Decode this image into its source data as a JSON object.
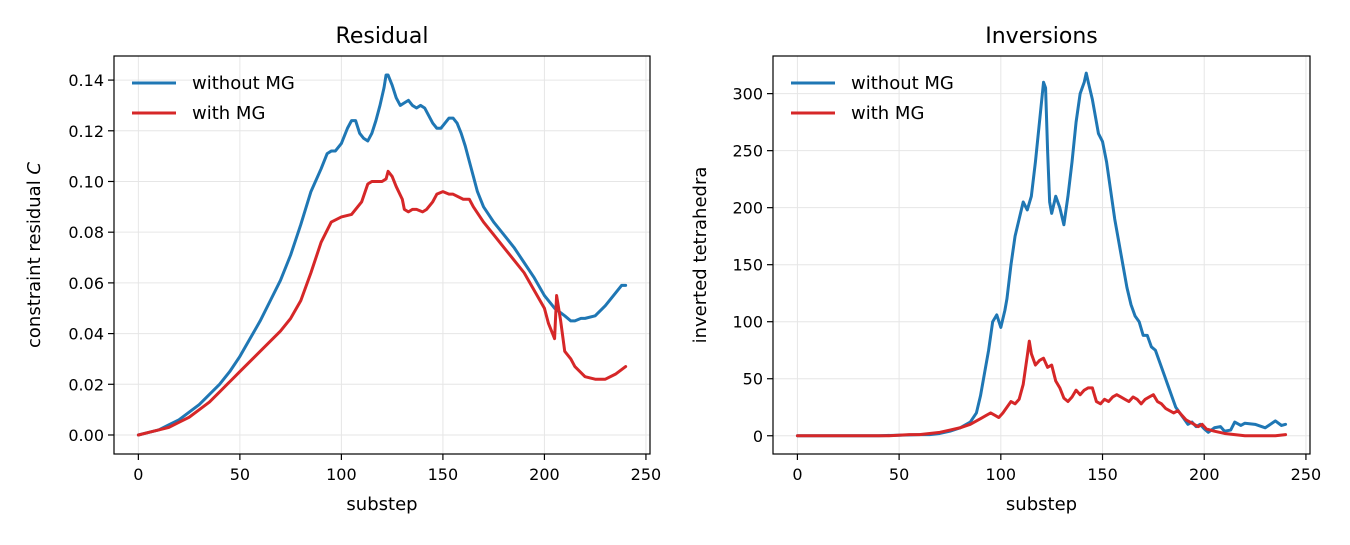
{
  "colors": {
    "without_mg": "#1f77b4",
    "with_mg": "#d62728",
    "grid": "#e6e6e6",
    "axis": "#000000"
  },
  "chart_data": [
    {
      "type": "line",
      "title": "Residual",
      "xlabel": "substep",
      "ylabel": "constraint residual",
      "ylabel_symbol": "C",
      "xlim": [
        -12,
        252
      ],
      "ylim": [
        -0.0075,
        0.1495
      ],
      "xticks": [
        0,
        50,
        100,
        150,
        200,
        250
      ],
      "yticks": [
        0.0,
        0.02,
        0.04,
        0.06,
        0.08,
        0.1,
        0.12,
        0.14
      ],
      "xtick_labels": [
        "0",
        "50",
        "100",
        "150",
        "200",
        "250"
      ],
      "ytick_labels": [
        "0.00",
        "0.02",
        "0.04",
        "0.06",
        "0.08",
        "0.10",
        "0.12",
        "0.14"
      ],
      "grid": true,
      "legend_position": "upper-left",
      "series": [
        {
          "name": "without MG",
          "color": "#1f77b4",
          "x": [
            0,
            5,
            10,
            15,
            20,
            25,
            30,
            35,
            40,
            45,
            50,
            55,
            60,
            65,
            70,
            75,
            80,
            85,
            90,
            93,
            95,
            97,
            100,
            103,
            105,
            107,
            109,
            111,
            113,
            115,
            117,
            119,
            121,
            122,
            123,
            125,
            127,
            129,
            131,
            133,
            135,
            137,
            139,
            141,
            143,
            145,
            147,
            149,
            151,
            153,
            155,
            157,
            159,
            161,
            163,
            165,
            167,
            170,
            175,
            180,
            185,
            190,
            195,
            200,
            205,
            210,
            213,
            215,
            218,
            220,
            225,
            230,
            235,
            238,
            240
          ],
          "y": [
            0.0,
            0.001,
            0.002,
            0.004,
            0.006,
            0.009,
            0.012,
            0.016,
            0.02,
            0.025,
            0.031,
            0.038,
            0.045,
            0.053,
            0.061,
            0.071,
            0.083,
            0.096,
            0.105,
            0.111,
            0.112,
            0.112,
            0.115,
            0.121,
            0.124,
            0.124,
            0.119,
            0.117,
            0.116,
            0.119,
            0.124,
            0.13,
            0.137,
            0.142,
            0.142,
            0.138,
            0.133,
            0.13,
            0.131,
            0.132,
            0.13,
            0.129,
            0.13,
            0.129,
            0.126,
            0.123,
            0.121,
            0.121,
            0.123,
            0.125,
            0.125,
            0.123,
            0.119,
            0.114,
            0.108,
            0.102,
            0.096,
            0.09,
            0.084,
            0.079,
            0.074,
            0.068,
            0.062,
            0.055,
            0.05,
            0.047,
            0.045,
            0.045,
            0.046,
            0.046,
            0.047,
            0.051,
            0.056,
            0.059,
            0.059
          ]
        },
        {
          "name": "with MG",
          "color": "#d62728",
          "x": [
            0,
            5,
            10,
            15,
            20,
            25,
            30,
            35,
            40,
            45,
            50,
            55,
            60,
            65,
            70,
            75,
            80,
            85,
            90,
            95,
            100,
            105,
            110,
            113,
            115,
            118,
            120,
            122,
            123,
            125,
            127,
            130,
            131,
            133,
            135,
            137,
            140,
            142,
            145,
            147,
            150,
            153,
            155,
            160,
            163,
            165,
            170,
            175,
            180,
            185,
            190,
            195,
            200,
            202,
            204,
            205,
            206,
            208,
            210,
            213,
            215,
            220,
            225,
            230,
            235,
            240
          ],
          "y": [
            0.0,
            0.001,
            0.002,
            0.003,
            0.005,
            0.007,
            0.01,
            0.013,
            0.017,
            0.021,
            0.025,
            0.029,
            0.033,
            0.037,
            0.041,
            0.046,
            0.053,
            0.064,
            0.076,
            0.084,
            0.086,
            0.087,
            0.092,
            0.099,
            0.1,
            0.1,
            0.1,
            0.101,
            0.104,
            0.102,
            0.098,
            0.093,
            0.089,
            0.088,
            0.089,
            0.089,
            0.088,
            0.089,
            0.092,
            0.095,
            0.096,
            0.095,
            0.095,
            0.093,
            0.093,
            0.09,
            0.084,
            0.079,
            0.074,
            0.069,
            0.064,
            0.057,
            0.05,
            0.044,
            0.04,
            0.038,
            0.055,
            0.045,
            0.033,
            0.03,
            0.027,
            0.023,
            0.022,
            0.022,
            0.024,
            0.027
          ]
        }
      ]
    },
    {
      "type": "line",
      "title": "Inversions",
      "xlabel": "substep",
      "ylabel": "inverted tetrahedra",
      "xlim": [
        -12,
        252
      ],
      "ylim": [
        -16,
        333
      ],
      "xticks": [
        0,
        50,
        100,
        150,
        200,
        250
      ],
      "yticks": [
        0,
        50,
        100,
        150,
        200,
        250,
        300
      ],
      "xtick_labels": [
        "0",
        "50",
        "100",
        "150",
        "200",
        "250"
      ],
      "ytick_labels": [
        "0",
        "50",
        "100",
        "150",
        "200",
        "250",
        "300"
      ],
      "grid": true,
      "legend_position": "upper-left",
      "series": [
        {
          "name": "without MG",
          "color": "#1f77b4",
          "x": [
            0,
            40,
            60,
            65,
            70,
            75,
            80,
            85,
            88,
            90,
            92,
            94,
            96,
            98,
            100,
            102,
            103,
            105,
            107,
            109,
            111,
            113,
            115,
            117,
            119,
            121,
            122,
            123,
            124,
            125,
            127,
            129,
            131,
            133,
            135,
            137,
            139,
            141,
            142,
            143,
            145,
            146,
            148,
            150,
            152,
            154,
            156,
            158,
            160,
            162,
            164,
            166,
            168,
            170,
            172,
            174,
            176,
            178,
            180,
            182,
            184,
            186,
            188,
            190,
            192,
            194,
            196,
            198,
            200,
            202,
            205,
            208,
            210,
            213,
            215,
            218,
            220,
            225,
            230,
            235,
            238,
            240
          ],
          "y": [
            0,
            0,
            1,
            1,
            2,
            4,
            7,
            12,
            20,
            35,
            55,
            75,
            100,
            106,
            95,
            110,
            120,
            150,
            175,
            190,
            205,
            198,
            210,
            240,
            275,
            310,
            305,
            250,
            205,
            195,
            210,
            200,
            185,
            210,
            240,
            275,
            300,
            310,
            318,
            310,
            295,
            285,
            265,
            258,
            240,
            215,
            190,
            170,
            150,
            130,
            115,
            105,
            100,
            88,
            88,
            78,
            75,
            65,
            55,
            45,
            35,
            25,
            20,
            15,
            10,
            12,
            8,
            10,
            6,
            3,
            7,
            8,
            4,
            5,
            12,
            9,
            11,
            10,
            7,
            13,
            9,
            10
          ]
        },
        {
          "name": "with MG",
          "color": "#d62728",
          "x": [
            0,
            45,
            55,
            60,
            65,
            70,
            75,
            80,
            85,
            88,
            90,
            93,
            95,
            97,
            99,
            101,
            103,
            105,
            107,
            109,
            111,
            113,
            114,
            115,
            117,
            119,
            121,
            123,
            125,
            127,
            129,
            131,
            133,
            135,
            137,
            139,
            141,
            143,
            145,
            147,
            149,
            151,
            153,
            155,
            157,
            159,
            161,
            163,
            165,
            167,
            169,
            171,
            173,
            175,
            177,
            179,
            181,
            183,
            185,
            187,
            189,
            191,
            193,
            195,
            197,
            199,
            201,
            203,
            205,
            210,
            215,
            220,
            225,
            230,
            235,
            240
          ],
          "y": [
            0,
            0,
            1,
            1,
            2,
            3,
            5,
            7,
            10,
            13,
            15,
            18,
            20,
            18,
            16,
            20,
            25,
            30,
            28,
            32,
            45,
            70,
            83,
            72,
            62,
            66,
            68,
            60,
            62,
            48,
            42,
            33,
            30,
            34,
            40,
            36,
            40,
            42,
            42,
            30,
            28,
            32,
            30,
            34,
            36,
            34,
            32,
            30,
            34,
            32,
            28,
            32,
            34,
            36,
            30,
            28,
            24,
            22,
            20,
            22,
            18,
            14,
            12,
            10,
            8,
            10,
            6,
            5,
            4,
            2,
            1,
            0,
            0,
            0,
            0,
            1
          ]
        }
      ]
    }
  ]
}
